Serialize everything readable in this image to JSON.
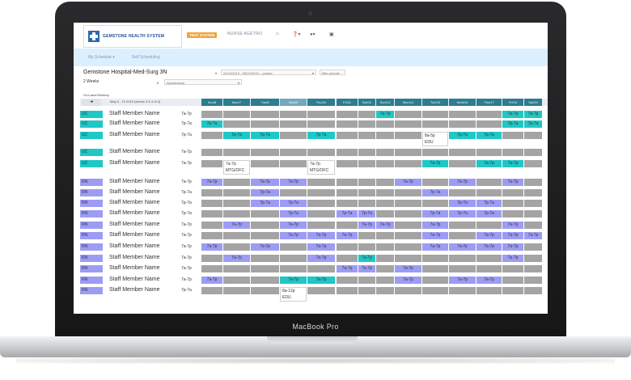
{
  "device": {
    "brand_label": "MacBook Pro"
  },
  "header": {
    "logo_text": "GEMSTONE HEALTH SYSTEM",
    "env_badge": "TEST SYSTEM",
    "user_name": "NURSE AGETRO",
    "icons": [
      "home-icon",
      "help-icon",
      "user-icon",
      "message-icon"
    ]
  },
  "subnav": {
    "items": [
      "My Schedule ▾",
      "Self Scheduling"
    ]
  },
  "filters": {
    "facility": "Gemstone Hospital-Med-Surg 3N",
    "date_range": "04/22/2019 - 05/19/2019 -- posted",
    "filter_periods": "filter periods",
    "weeks": "2 Weeks",
    "sort": "Alphabetical",
    "unit": "S4-Labor/Delivery",
    "range_text": "May 6 - 19 2019 (weeks 3 & 4 of 4)",
    "pager_prev": "◄"
  },
  "days": [
    "Sun/6",
    "Mon/7",
    "Tue/8",
    "Wed/9",
    "Thu/10",
    "Fri/11",
    "Sat/12",
    "Sun/13",
    "Mon/14",
    "Tue/15",
    "Wed/16",
    "Thu/17",
    "Fri/18",
    "Sat/19"
  ],
  "highlight_day": 3,
  "colors": {
    "gray": "#a4a4a4",
    "teal": "#1fc7c6",
    "purple": "#9d9cf4",
    "header": "#2d7c90"
  },
  "rows": [
    {
      "role": "UC",
      "name": "Staff Member Name",
      "time": "7a-7p",
      "cells": [
        [
          "g"
        ],
        [
          "g"
        ],
        [
          "g"
        ],
        [
          "g"
        ],
        [
          "g"
        ],
        [
          "g"
        ],
        [
          "g"
        ],
        [
          "t",
          "7a-7p"
        ],
        [
          "g"
        ],
        [
          "g"
        ],
        [
          "g"
        ],
        [
          "g"
        ],
        [
          "t",
          "7a-7p"
        ],
        [
          "t",
          "7a-7p"
        ]
      ]
    },
    {
      "role": "UC",
      "name": "Staff Member Name",
      "time": "7p-7a",
      "cells": [
        [
          "t",
          "7p-7a"
        ],
        [
          "g"
        ],
        [
          "g"
        ],
        [
          "g"
        ],
        [
          "g"
        ],
        [
          "g"
        ],
        [
          "g"
        ],
        [
          "g"
        ],
        [
          "g"
        ],
        [
          "g"
        ],
        [
          "g"
        ],
        [
          "g"
        ],
        [
          "t",
          "7p-7a"
        ],
        [
          "t",
          "7p-7a"
        ]
      ]
    },
    {
      "role": "UC",
      "name": "Staff Member Name",
      "time": "7p-7a",
      "cells": [
        [
          "g"
        ],
        [
          "t",
          "7p-7a"
        ],
        [
          "t",
          "7p-7a"
        ],
        [
          "g"
        ],
        [
          "t",
          "7p-7a"
        ],
        [
          "g"
        ],
        [
          "g"
        ],
        [
          "g"
        ],
        [
          "g"
        ],
        [
          "w",
          "8a-5p",
          "EDU"
        ],
        [
          "t",
          "7p-7a"
        ],
        [
          "t",
          "7p-7a"
        ],
        [
          "g"
        ],
        [
          "g"
        ]
      ]
    },
    {
      "role": "UC",
      "name": "Staff Member Name",
      "time": "7a-7p",
      "cells": [
        [
          "g"
        ],
        [
          "g"
        ],
        [
          "g"
        ],
        [
          "g"
        ],
        [
          "g"
        ],
        [
          "g"
        ],
        [
          "g"
        ],
        [
          "g"
        ],
        [
          "g"
        ],
        [
          "g"
        ],
        [
          "g"
        ],
        [
          "g"
        ],
        [
          "g"
        ],
        [
          "g"
        ]
      ]
    },
    {
      "role": "UC",
      "name": "Staff Member Name",
      "time": "7a-7p",
      "cells": [
        [
          "g"
        ],
        [
          "w",
          "7a-7p",
          "MTG/OFC"
        ],
        [
          "g"
        ],
        [
          "g"
        ],
        [
          "w",
          "7a-7p",
          "MTG/OFC"
        ],
        [
          "g"
        ],
        [
          "g"
        ],
        [
          "g"
        ],
        [
          "g"
        ],
        [
          "t",
          "7a-7p"
        ],
        [
          "g"
        ],
        [
          "t",
          "7a-7p"
        ],
        [
          "t",
          "7a-7p"
        ],
        [
          "g"
        ]
      ]
    },
    {
      "role": "RN",
      "name": "Staff Member Name",
      "time": "7a-7p",
      "cells": [
        [
          "p",
          "7a-7p"
        ],
        [
          "g"
        ],
        [
          "p",
          "7a-7p"
        ],
        [
          "p",
          "7a-7p"
        ],
        [
          "g"
        ],
        [
          "g"
        ],
        [
          "g"
        ],
        [
          "g"
        ],
        [
          "p",
          "7a-7p"
        ],
        [
          "g"
        ],
        [
          "p",
          "7a-7p"
        ],
        [
          "g"
        ],
        [
          "p",
          "7a-7p"
        ],
        [
          "g"
        ]
      ]
    },
    {
      "role": "RN",
      "name": "Staff Member Name",
      "time": "7p-7a",
      "cells": [
        [
          "g"
        ],
        [
          "g"
        ],
        [
          "p",
          "7p-7a"
        ],
        [
          "g"
        ],
        [
          "g"
        ],
        [
          "g"
        ],
        [
          "g"
        ],
        [
          "g"
        ],
        [
          "g"
        ],
        [
          "p",
          "7p-7a"
        ],
        [
          "g"
        ],
        [
          "g"
        ],
        [
          "g"
        ],
        [
          "g"
        ]
      ]
    },
    {
      "role": "RN",
      "name": "Staff Member Name",
      "time": "7p-7a",
      "cells": [
        [
          "g"
        ],
        [
          "g"
        ],
        [
          "p",
          "7p-7a"
        ],
        [
          "p",
          "7p-7a"
        ],
        [
          "g"
        ],
        [
          "g"
        ],
        [
          "g"
        ],
        [
          "g"
        ],
        [
          "g"
        ],
        [
          "g"
        ],
        [
          "p",
          "7p-7a"
        ],
        [
          "p",
          "7p-7a"
        ],
        [
          "g"
        ],
        [
          "g"
        ]
      ]
    },
    {
      "role": "RN",
      "name": "Staff Member Name",
      "time": "7p-7a",
      "cells": [
        [
          "g"
        ],
        [
          "g"
        ],
        [
          "g"
        ],
        [
          "p",
          "7p-7a"
        ],
        [
          "g"
        ],
        [
          "p",
          "7p-7a"
        ],
        [
          "p",
          "7p-7a"
        ],
        [
          "g"
        ],
        [
          "g"
        ],
        [
          "p",
          "7p-7a"
        ],
        [
          "p",
          "7p-7a"
        ],
        [
          "p",
          "7p-7a"
        ],
        [
          "g"
        ],
        [
          "g"
        ]
      ]
    },
    {
      "role": "RN",
      "name": "Staff Member Name",
      "time": "7a-7p",
      "cells": [
        [
          "g"
        ],
        [
          "p",
          "7a-7p"
        ],
        [
          "g"
        ],
        [
          "p",
          "7a-7p"
        ],
        [
          "g"
        ],
        [
          "g"
        ],
        [
          "p",
          "7a-7p"
        ],
        [
          "p",
          "7a-7p"
        ],
        [
          "g"
        ],
        [
          "p",
          "7a-7p"
        ],
        [
          "g"
        ],
        [
          "g"
        ],
        [
          "p",
          "7a-7p"
        ],
        [
          "g"
        ]
      ]
    },
    {
      "role": "RN",
      "name": "Staff Member Name",
      "time": "7a-7p",
      "cells": [
        [
          "g"
        ],
        [
          "g"
        ],
        [
          "g"
        ],
        [
          "p",
          "7a-7p"
        ],
        [
          "p",
          "7a-7p"
        ],
        [
          "p",
          "7a-7p"
        ],
        [
          "g"
        ],
        [
          "g"
        ],
        [
          "g"
        ],
        [
          "p",
          "7a-7p"
        ],
        [
          "g"
        ],
        [
          "p",
          "7a-7p"
        ],
        [
          "p",
          "7a-7p"
        ],
        [
          "p",
          "7a-7p"
        ]
      ]
    },
    {
      "role": "RN",
      "name": "Staff Member Name",
      "time": "7a-7p",
      "cells": [
        [
          "p",
          "7a-7p"
        ],
        [
          "g"
        ],
        [
          "p",
          "7a-7p"
        ],
        [
          "g"
        ],
        [
          "p",
          "7a-7p"
        ],
        [
          "g"
        ],
        [
          "g"
        ],
        [
          "g"
        ],
        [
          "g"
        ],
        [
          "p",
          "7a-7p"
        ],
        [
          "p",
          "7a-7p"
        ],
        [
          "p",
          "7a-7p"
        ],
        [
          "p",
          "7a-7p"
        ],
        [
          "g"
        ]
      ]
    },
    {
      "role": "RN",
      "name": "Staff Member Name",
      "time": "7a-7p",
      "cells": [
        [
          "g"
        ],
        [
          "p",
          "7a-7p"
        ],
        [
          "g"
        ],
        [
          "g"
        ],
        [
          "p",
          "7a-7p"
        ],
        [
          "g"
        ],
        [
          "t",
          "7a-7p"
        ],
        [
          "g"
        ],
        [
          "g"
        ],
        [
          "g"
        ],
        [
          "g"
        ],
        [
          "g"
        ],
        [
          "p",
          "7a-7p"
        ],
        [
          "g"
        ]
      ]
    },
    {
      "role": "RN",
      "name": "Staff Member Name",
      "time": "7a-7p",
      "cells": [
        [
          "g"
        ],
        [
          "g"
        ],
        [
          "g"
        ],
        [
          "g"
        ],
        [
          "g"
        ],
        [
          "p",
          "7a-7p"
        ],
        [
          "p",
          "7a-7p"
        ],
        [
          "g"
        ],
        [
          "p",
          "7a-7p"
        ],
        [
          "g"
        ],
        [
          "g"
        ],
        [
          "g"
        ],
        [
          "g"
        ],
        [
          "g"
        ]
      ]
    },
    {
      "role": "RN",
      "name": "Staff Member Name",
      "time": "7a-7p",
      "cells": [
        [
          "p",
          "7a-7p"
        ],
        [
          "g"
        ],
        [
          "g"
        ],
        [
          "t",
          "7a-7p"
        ],
        [
          "t",
          "7a-7p"
        ],
        [
          "g"
        ],
        [
          "g"
        ],
        [
          "g"
        ],
        [
          "p",
          "7a-7p"
        ],
        [
          "g"
        ],
        [
          "p",
          "7a-7p"
        ],
        [
          "p",
          "7a-7p"
        ],
        [
          "g"
        ],
        [
          "g"
        ]
      ]
    },
    {
      "role": "RN",
      "name": "Staff Member Name",
      "time": "7p-7a",
      "cells": [
        [
          "g"
        ],
        [
          "g"
        ],
        [
          "g"
        ],
        [
          "w",
          "8a-12p",
          "EDU"
        ],
        [
          "g"
        ],
        [
          "g"
        ],
        [
          "g"
        ],
        [
          "g"
        ],
        [
          "g"
        ],
        [
          "g"
        ],
        [
          "g"
        ],
        [
          "g"
        ],
        [
          "g"
        ],
        [
          "g"
        ]
      ]
    }
  ]
}
